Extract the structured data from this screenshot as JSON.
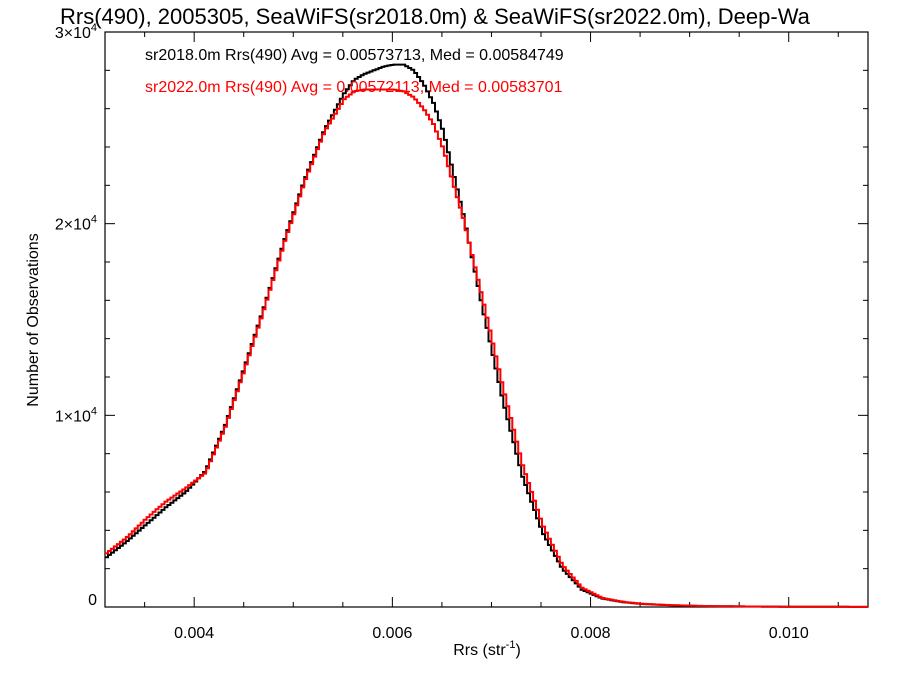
{
  "chart_data": {
    "type": "line",
    "title": "Rrs(490), 2005305, SeaWiFS(sr2018.0m) & SeaWiFS(sr2022.0m), Deep-Wa",
    "xlabel_main": "Rrs (str",
    "xlabel_sup": "-1",
    "xlabel_end": ")",
    "ylabel": "Number of Observations",
    "xlim": [
      0.0031,
      0.0108
    ],
    "ylim": [
      0,
      30000
    ],
    "x_ticks": [
      {
        "value": 0.004,
        "label": "0.004"
      },
      {
        "value": 0.006,
        "label": "0.006"
      },
      {
        "value": 0.008,
        "label": "0.008"
      },
      {
        "value": 0.01,
        "label": "0.010"
      }
    ],
    "y_ticks": [
      {
        "value": 0,
        "base": "0",
        "exp": ""
      },
      {
        "value": 10000,
        "base": "1×10",
        "exp": "4"
      },
      {
        "value": 20000,
        "base": "2×10",
        "exp": "4"
      },
      {
        "value": 30000,
        "base": "3×10",
        "exp": "4"
      }
    ],
    "annotations": [
      {
        "text": "sr2018.0m Rrs(490) Avg = 0.00573713, Med = 0.00584749",
        "color": "#000000"
      },
      {
        "text": "sr2022.0m Rrs(490) Avg = 0.00572113, Med = 0.00583701",
        "color": "#ff0000"
      }
    ],
    "series": [
      {
        "color": "#000000",
        "x": [
          0.0031,
          0.0033,
          0.0035,
          0.0037,
          0.0039,
          0.0041,
          0.0043,
          0.0045,
          0.0047,
          0.0049,
          0.0051,
          0.0053,
          0.0055,
          0.0056,
          0.0057,
          0.0058,
          0.0059,
          0.006,
          0.0061,
          0.0062,
          0.0063,
          0.0064,
          0.0065,
          0.0067,
          0.0069,
          0.0071,
          0.0073,
          0.0075,
          0.0077,
          0.0079,
          0.0081,
          0.0083,
          0.0085,
          0.0088,
          0.0091,
          0.0095,
          0.01,
          0.0108
        ],
        "y": [
          2600,
          3400,
          4300,
          5200,
          6000,
          7100,
          9500,
          12600,
          15800,
          19200,
          22300,
          24900,
          26800,
          27500,
          27800,
          28000,
          28200,
          28300,
          28300,
          28000,
          27300,
          26300,
          24800,
          20500,
          15500,
          10800,
          6800,
          3900,
          2000,
          900,
          450,
          260,
          160,
          90,
          50,
          30,
          15,
          5
        ]
      },
      {
        "color": "#ff0000",
        "x": [
          0.0031,
          0.0033,
          0.0035,
          0.0037,
          0.0039,
          0.0041,
          0.0043,
          0.0045,
          0.0047,
          0.0049,
          0.0051,
          0.0053,
          0.0055,
          0.0056,
          0.0057,
          0.0058,
          0.0059,
          0.006,
          0.0061,
          0.0062,
          0.0063,
          0.0064,
          0.0065,
          0.0067,
          0.0069,
          0.0071,
          0.0073,
          0.0075,
          0.0077,
          0.0079,
          0.0081,
          0.0083,
          0.0085,
          0.0088,
          0.0091,
          0.0095,
          0.01,
          0.0108
        ],
        "y": [
          2800,
          3600,
          4600,
          5500,
          6200,
          7000,
          9400,
          12500,
          15700,
          19100,
          22200,
          24800,
          26500,
          26900,
          27000,
          27000,
          27000,
          27000,
          26900,
          26600,
          26000,
          25200,
          23900,
          20300,
          16000,
          11500,
          7400,
          4300,
          2200,
          1000,
          480,
          280,
          170,
          95,
          55,
          30,
          15,
          5
        ]
      }
    ]
  }
}
